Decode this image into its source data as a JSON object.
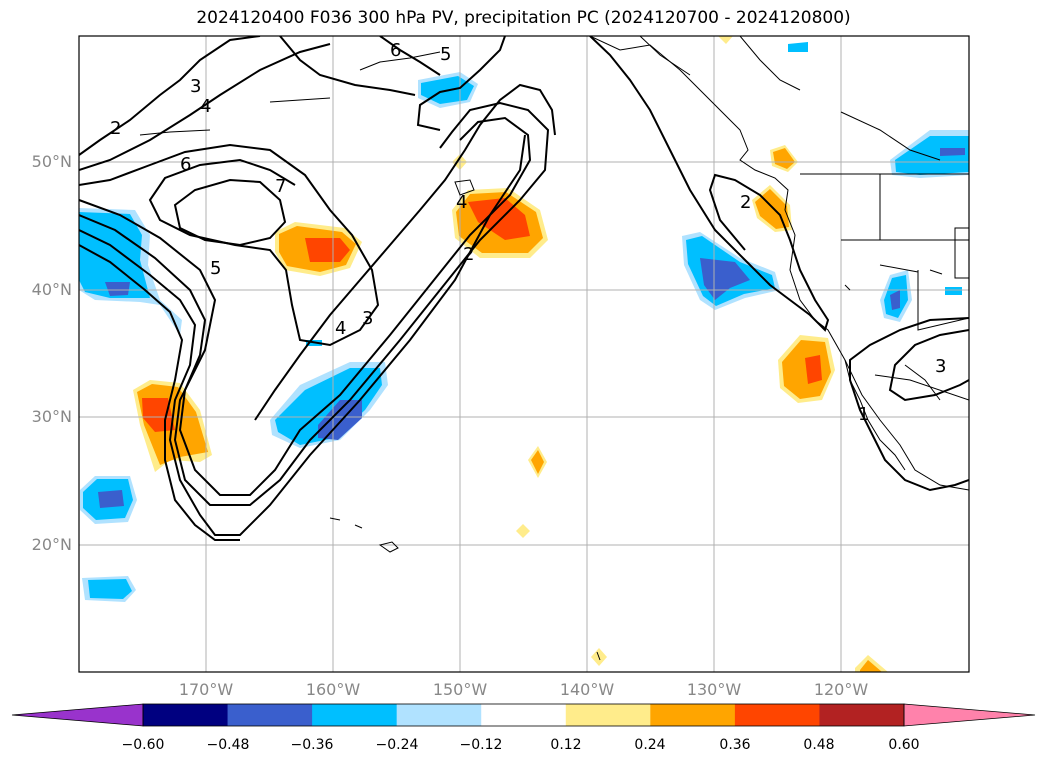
{
  "title": "2024120400 F036 300 hPa PV, precipitation PC (2024120700 - 2024120800)",
  "map": {
    "lat_labels": [
      "50°N",
      "40°N",
      "30°N",
      "20°N"
    ],
    "lon_labels": [
      "170°W",
      "160°W",
      "150°W",
      "140°W",
      "130°W",
      "120°W"
    ],
    "grid": true,
    "frame_color": "#000000",
    "coastline_color": "#000000",
    "pv_contour_color": "#000000",
    "pv_contour_labels": [
      "1",
      "2",
      "3",
      "4",
      "5",
      "6",
      "7"
    ]
  },
  "colorbar": {
    "ticks": [
      "−0.60",
      "−0.48",
      "−0.36",
      "−0.24",
      "−0.12",
      "0.12",
      "0.24",
      "0.36",
      "0.48",
      "0.60"
    ],
    "colors": {
      "under": "#9933cc",
      "bins": [
        "#000080",
        "#3a5fcd",
        "#00bfff",
        "#b0e2ff",
        "#ffffff",
        "#ffec8b",
        "#ffa500",
        "#ff4500",
        "#b22222"
      ],
      "over": "#ff82ab"
    }
  }
}
